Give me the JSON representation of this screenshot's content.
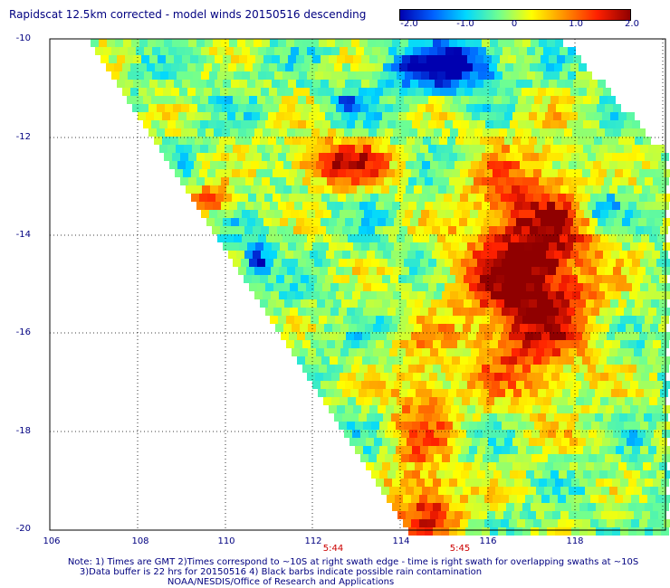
{
  "title": "Rapidscat 12.5km corrected - model winds 20150516 descending",
  "colorbar": {
    "range": [
      -2.0,
      2.0
    ],
    "tick_labels": [
      "-2.0",
      "-1.0",
      "0",
      "1.0",
      "2.0"
    ],
    "colors": [
      "#0000b0",
      "#0060ff",
      "#00d8ff",
      "#70ff90",
      "#ffff00",
      "#ff9000",
      "#ff2000",
      "#900000"
    ]
  },
  "axes": {
    "lat_labels": [
      "-10",
      "-12",
      "-14",
      "-16",
      "-18",
      "-20"
    ],
    "lon_labels": [
      "106",
      "108",
      "110",
      "112",
      "114",
      "116",
      "118"
    ],
    "grid": "dotted"
  },
  "time_labels": [
    "5:44",
    "5:45"
  ],
  "notes": [
    "Note: 1) Times are GMT 2)Times correspond to ~10S at right swath edge - time is right swath for overlapping swaths at ~10S",
    "3)Data buffer is 22 hrs for 20150516 4) Black barbs indicate possible rain contamination",
    "NOAA/NESDIS/Office of Research and Applications"
  ]
}
